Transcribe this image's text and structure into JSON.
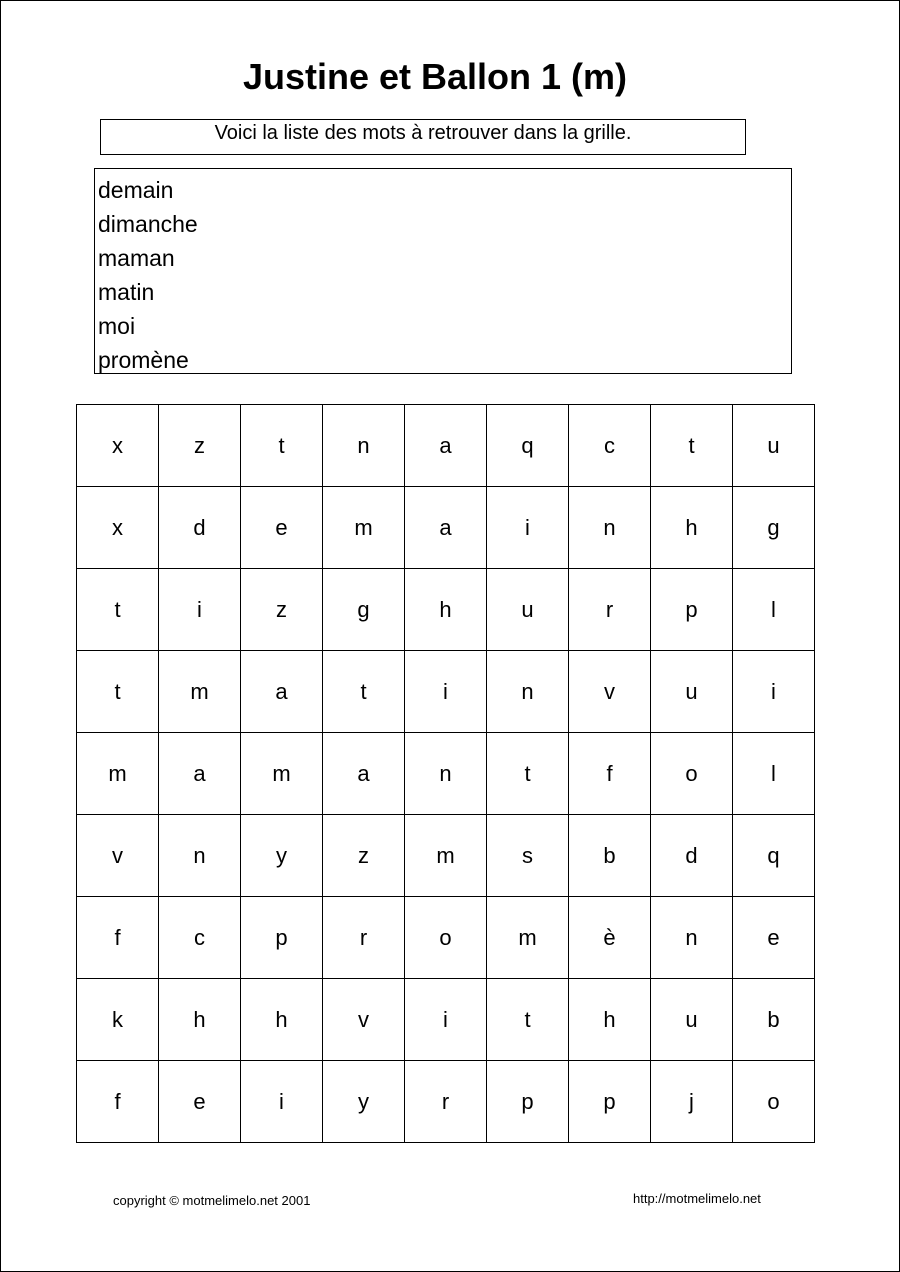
{
  "title": "Justine et Ballon 1 (m)",
  "instruction": "Voici la liste des mots à retrouver dans la grille.",
  "words": [
    "demain",
    "dimanche",
    "maman",
    "matin",
    "moi",
    "promène"
  ],
  "grid": [
    [
      "x",
      "z",
      "t",
      "n",
      "a",
      "q",
      "c",
      "t",
      "u"
    ],
    [
      "x",
      "d",
      "e",
      "m",
      "a",
      "i",
      "n",
      "h",
      "g"
    ],
    [
      "t",
      "i",
      "z",
      "g",
      "h",
      "u",
      "r",
      "p",
      "l"
    ],
    [
      "t",
      "m",
      "a",
      "t",
      "i",
      "n",
      "v",
      "u",
      "i"
    ],
    [
      "m",
      "a",
      "m",
      "a",
      "n",
      "t",
      "f",
      "o",
      "l"
    ],
    [
      "v",
      "n",
      "y",
      "z",
      "m",
      "s",
      "b",
      "d",
      "q"
    ],
    [
      "f",
      "c",
      "p",
      "r",
      "o",
      "m",
      "è",
      "n",
      "e"
    ],
    [
      "k",
      "h",
      "h",
      "v",
      "i",
      "t",
      "h",
      "u",
      "b"
    ],
    [
      "f",
      "e",
      "i",
      "y",
      "r",
      "p",
      "p",
      "j",
      "o"
    ]
  ],
  "footer": {
    "copyright": "copyright © motmelimelo.net 2001",
    "url": "http://motmelimelo.net"
  }
}
